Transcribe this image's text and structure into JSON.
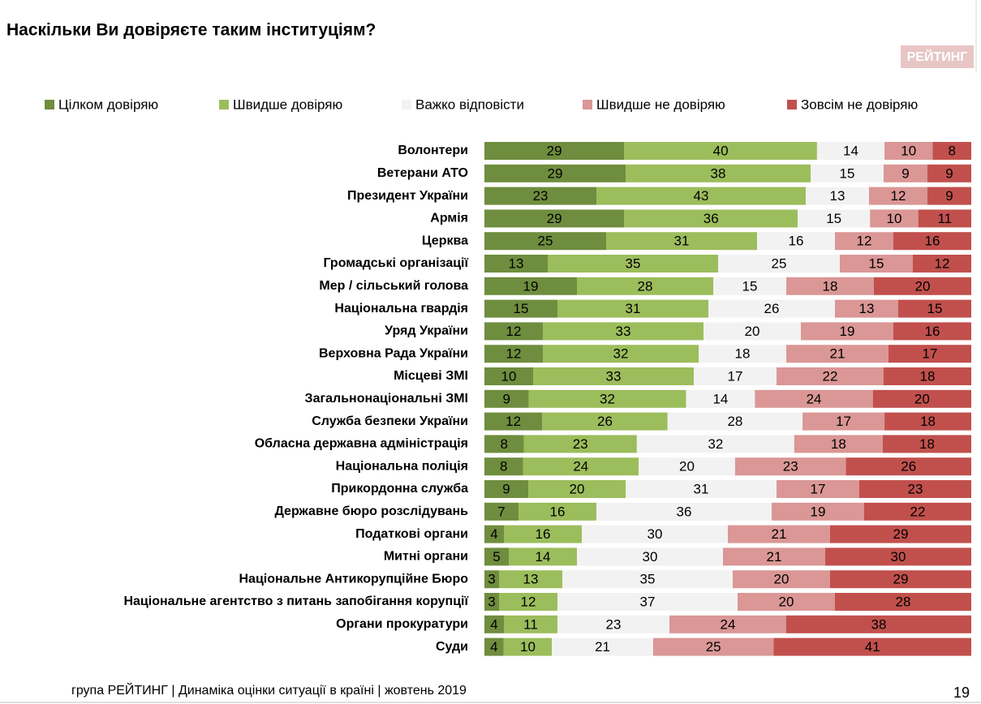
{
  "chart_data": {
    "type": "stacked-bar-horizontal",
    "title": "Наскільки Ви довіряєте таким інституціям?",
    "categories": [
      "Волонтери",
      "Ветерани АТО",
      "Президент України",
      "Армія",
      "Церква",
      "Громадські організації",
      "Мер / сільський голова",
      "Національна гвардія",
      "Уряд України",
      "Верховна Рада України",
      "Місцеві ЗМІ",
      "Загальнонаціональні ЗМІ",
      "Служба безпеки України",
      "Обласна державна адміністрація",
      "Національна поліція",
      "Прикордонна служба",
      "Державне бюро розслідувань",
      "Податкові органи",
      "Митні органи",
      "Національне Антикорупційне Бюро",
      "Національне агентство з питань запобігання корупції",
      "Органи прокуратури",
      "Суди"
    ],
    "series": [
      {
        "name": "Цілком довіряю",
        "color": "#6f8d3e",
        "values": [
          29,
          29,
          23,
          29,
          25,
          13,
          19,
          15,
          12,
          12,
          10,
          9,
          12,
          8,
          8,
          9,
          7,
          4,
          5,
          3,
          3,
          4,
          4
        ]
      },
      {
        "name": "Швидше довіряю",
        "color": "#9cbd5c",
        "values": [
          40,
          38,
          43,
          36,
          31,
          35,
          28,
          31,
          33,
          32,
          33,
          32,
          26,
          23,
          24,
          20,
          16,
          16,
          14,
          13,
          12,
          11,
          10
        ]
      },
      {
        "name": "Важко відповісти",
        "color": "#f2f2f2",
        "values": [
          14,
          15,
          13,
          15,
          16,
          25,
          15,
          26,
          20,
          18,
          17,
          14,
          28,
          32,
          20,
          31,
          36,
          30,
          30,
          35,
          37,
          23,
          21
        ]
      },
      {
        "name": "Швидше не довіряю",
        "color": "#da9795",
        "values": [
          10,
          9,
          12,
          10,
          12,
          15,
          18,
          13,
          19,
          21,
          22,
          24,
          17,
          18,
          23,
          17,
          19,
          21,
          21,
          20,
          20,
          24,
          25
        ]
      },
      {
        "name": "Зовсім не довіряю",
        "color": "#c1504d",
        "values": [
          8,
          9,
          9,
          11,
          16,
          12,
          20,
          15,
          16,
          17,
          18,
          20,
          18,
          18,
          26,
          23,
          22,
          29,
          30,
          29,
          28,
          38,
          41
        ]
      }
    ]
  },
  "logo": "РЕЙТИНГ",
  "footer": "група РЕЙТИНГ |  Динаміка оцінки ситуації в країні  |  жовтень  2019",
  "page_number": "19"
}
